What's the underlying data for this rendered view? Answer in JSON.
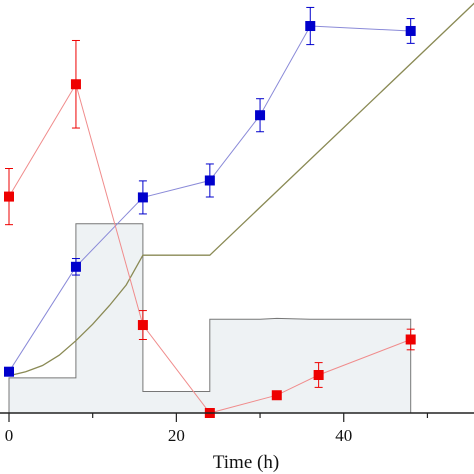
{
  "chart_data": {
    "type": "line",
    "title": "",
    "xlabel": "Time (h)",
    "ylabel": "",
    "xlim": [
      0,
      57
    ],
    "ylim": [
      0,
      1
    ],
    "x_ticks": [
      0,
      20,
      40
    ],
    "grid": false,
    "legend": "none",
    "series": [
      {
        "key": "blue",
        "color": "#0000cc",
        "line_color": "#8a8ad8",
        "marker": "square",
        "points": [
          {
            "x": 0,
            "y": 0.1,
            "err": 0.0
          },
          {
            "x": 8,
            "y": 0.354,
            "err": 0.02
          },
          {
            "x": 16,
            "y": 0.522,
            "err": 0.04
          },
          {
            "x": 24,
            "y": 0.563,
            "err": 0.04
          },
          {
            "x": 30,
            "y": 0.721,
            "err": 0.04
          },
          {
            "x": 36,
            "y": 0.937,
            "err": 0.045
          },
          {
            "x": 48,
            "y": 0.925,
            "err": 0.03
          }
        ]
      },
      {
        "key": "red",
        "color": "#ee0000",
        "line_color": "#f08c8c",
        "marker": "square",
        "points": [
          {
            "x": 0,
            "y": 0.524,
            "err": 0.068
          },
          {
            "x": 8,
            "y": 0.796,
            "err": 0.106
          },
          {
            "x": 16,
            "y": 0.213,
            "err": 0.035
          },
          {
            "x": 24,
            "y": 0.0,
            "err": 0.0
          },
          {
            "x": 32,
            "y": 0.043,
            "err": 0.0
          },
          {
            "x": 37,
            "y": 0.092,
            "err": 0.03
          },
          {
            "x": 48,
            "y": 0.178,
            "err": 0.025
          }
        ]
      },
      {
        "key": "olive",
        "color": "#8a8a55",
        "style": "line",
        "points": [
          {
            "x": 0,
            "y": 0.09
          },
          {
            "x": 2,
            "y": 0.1
          },
          {
            "x": 4,
            "y": 0.115
          },
          {
            "x": 6,
            "y": 0.14
          },
          {
            "x": 8,
            "y": 0.175
          },
          {
            "x": 10,
            "y": 0.215
          },
          {
            "x": 12,
            "y": 0.26
          },
          {
            "x": 14,
            "y": 0.31
          },
          {
            "x": 16,
            "y": 0.382
          },
          {
            "x": 24,
            "y": 0.382
          },
          {
            "x": 56,
            "y": 1.0
          }
        ]
      },
      {
        "key": "gray_step",
        "color": "#777777",
        "fill": "#eef2f4",
        "style": "step",
        "points": [
          {
            "x": 0,
            "y": 0.085
          },
          {
            "x": 8,
            "y": 0.085
          },
          {
            "x": 8,
            "y": 0.458
          },
          {
            "x": 16,
            "y": 0.458
          },
          {
            "x": 16,
            "y": 0.052
          },
          {
            "x": 24,
            "y": 0.052
          },
          {
            "x": 24,
            "y": 0.227
          },
          {
            "x": 30,
            "y": 0.227
          },
          {
            "x": 32,
            "y": 0.229
          },
          {
            "x": 36,
            "y": 0.227
          },
          {
            "x": 48,
            "y": 0.227
          },
          {
            "x": 48,
            "y": 0.0
          }
        ]
      }
    ]
  }
}
